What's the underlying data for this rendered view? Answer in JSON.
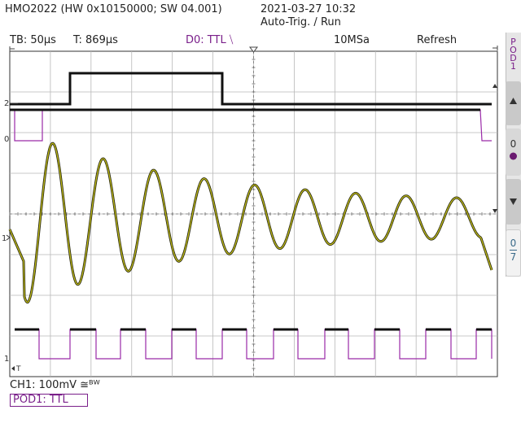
{
  "title_bar": {
    "device": "HMO2022 (HW 0x10150000; SW 04.001)",
    "datetime": "2021-03-27 10:32",
    "trigger_state": "Auto-Trig. / Run"
  },
  "status_bar": {
    "timebase": "TB: 50µs",
    "trigger_time": "T: 869µs",
    "trigger_source": "D0: TTL ⧹",
    "sample_rate": "10MSa",
    "mode": "Refresh"
  },
  "markers": {
    "d1_level": "2",
    "d0_level": "0",
    "ch1_level": "1",
    "pod_level": "1",
    "trigger_pos": "T"
  },
  "side_panel": {
    "pod_label": [
      "P",
      "O",
      "D",
      "1"
    ],
    "up_icon": "up-arrow-icon",
    "down_icon": "down-arrow-icon",
    "bit_value": "0",
    "range_top": "0",
    "range_bottom": "7"
  },
  "footer": {
    "ch1_info": "CH1: 100mV ≅ᴮᵂ",
    "pod_info": "POD1: TTL"
  },
  "colors": {
    "analog_trace": "#c9c41a",
    "analog_dark": "#2a2a10",
    "digital_black": "#111111",
    "digital_purple": "#9a2aa8",
    "accent_purple": "#7a1f8a",
    "grid": "#b8b8b8"
  }
}
